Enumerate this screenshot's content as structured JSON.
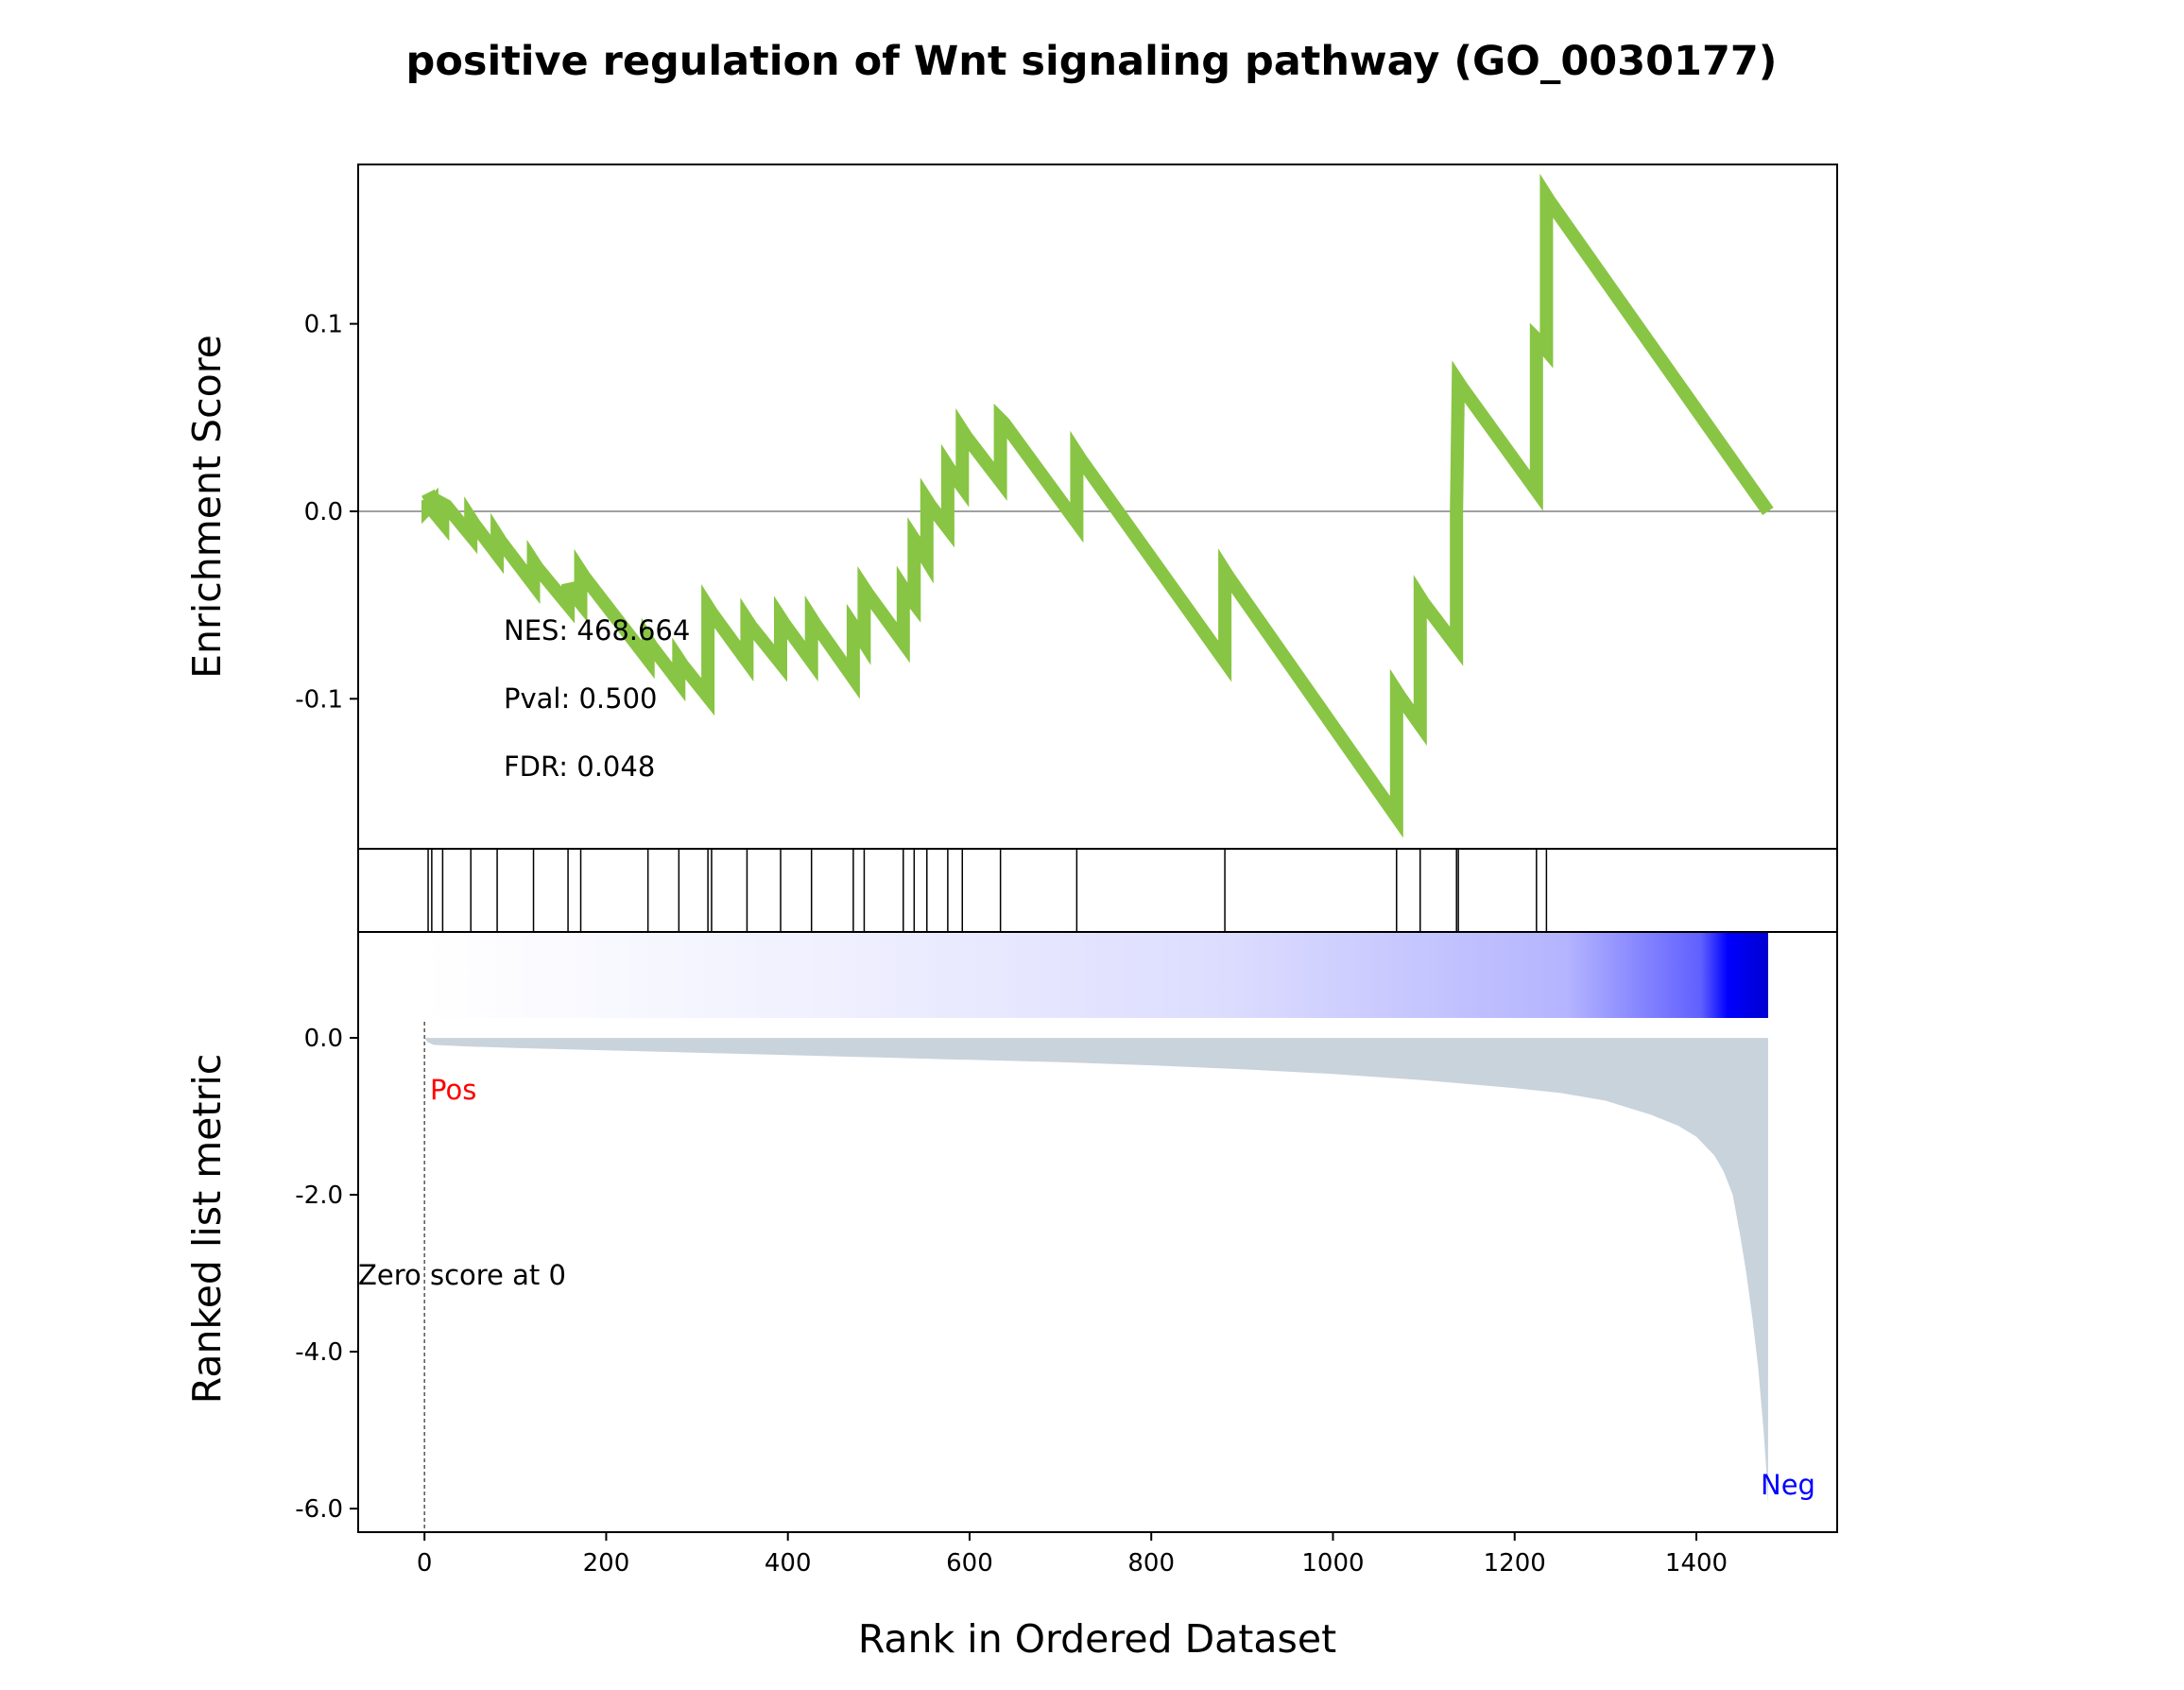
{
  "chart_data": {
    "type": "line",
    "title": "positive regulation of Wnt signaling pathway (GO_0030177)",
    "xlabel": "Rank in Ordered Dataset",
    "xlim": [
      -73,
      1555
    ],
    "x_ticks": [
      0,
      200,
      400,
      600,
      800,
      1000,
      1200,
      1400
    ],
    "enrichment_panel": {
      "ylabel": "Enrichment Score",
      "ylim": [
        -0.18,
        0.185
      ],
      "y_ticks": [
        0.1,
        0.0,
        -0.1
      ],
      "y_tick_labels": [
        "0.1",
        "0.0",
        "-0.1"
      ],
      "zero_line": true,
      "line_color": "#88c544",
      "running_es": [
        [
          0,
          0.005
        ],
        [
          4,
          0.006
        ],
        [
          4,
          0.002
        ],
        [
          8,
          0.004
        ],
        [
          8,
          0.001
        ],
        [
          20,
          -0.006
        ],
        [
          20,
          0.004
        ],
        [
          24,
          0.003
        ],
        [
          51,
          -0.013
        ],
        [
          51,
          -0.004
        ],
        [
          55,
          -0.007
        ],
        [
          80,
          -0.023
        ],
        [
          80,
          -0.013
        ],
        [
          84,
          -0.016
        ],
        [
          120,
          -0.039
        ],
        [
          120,
          -0.027
        ],
        [
          124,
          -0.03
        ],
        [
          158,
          -0.05
        ],
        [
          158,
          -0.039
        ],
        [
          162,
          -0.043
        ],
        [
          172,
          -0.049
        ],
        [
          172,
          -0.032
        ],
        [
          176,
          -0.035
        ],
        [
          246,
          -0.079
        ],
        [
          246,
          -0.069
        ],
        [
          250,
          -0.072
        ],
        [
          280,
          -0.091
        ],
        [
          280,
          -0.079
        ],
        [
          284,
          -0.082
        ],
        [
          312,
          -0.099
        ],
        [
          312,
          -0.051
        ],
        [
          316,
          -0.054
        ],
        [
          355,
          -0.08
        ],
        [
          355,
          -0.058
        ],
        [
          359,
          -0.061
        ],
        [
          392,
          -0.081
        ],
        [
          392,
          -0.057
        ],
        [
          396,
          -0.06
        ],
        [
          426,
          -0.08
        ],
        [
          426,
          -0.057
        ],
        [
          430,
          -0.06
        ],
        [
          472,
          -0.089
        ],
        [
          472,
          -0.061
        ],
        [
          476,
          -0.064
        ],
        [
          484,
          -0.07
        ],
        [
          484,
          -0.041
        ],
        [
          488,
          -0.044
        ],
        [
          527,
          -0.07
        ],
        [
          527,
          -0.041
        ],
        [
          531,
          -0.044
        ],
        [
          539,
          -0.049
        ],
        [
          539,
          -0.015
        ],
        [
          543,
          -0.018
        ],
        [
          553,
          -0.026
        ],
        [
          553,
          0.006
        ],
        [
          557,
          0.003
        ],
        [
          576,
          -0.009
        ],
        [
          576,
          0.024
        ],
        [
          580,
          0.021
        ],
        [
          592,
          0.013
        ],
        [
          592,
          0.043
        ],
        [
          596,
          0.04
        ],
        [
          634,
          0.016
        ],
        [
          634,
          0.049
        ],
        [
          638,
          0.047
        ],
        [
          718,
          -0.006
        ],
        [
          718,
          0.031
        ],
        [
          722,
          0.028
        ],
        [
          881,
          -0.08
        ],
        [
          881,
          -0.032
        ],
        [
          885,
          -0.035
        ],
        [
          1070,
          -0.163
        ],
        [
          1070,
          -0.096
        ],
        [
          1074,
          -0.099
        ],
        [
          1096,
          -0.114
        ],
        [
          1096,
          -0.046
        ],
        [
          1100,
          -0.049
        ],
        [
          1136,
          -0.072
        ],
        [
          1136,
          0.001
        ],
        [
          1138,
          0.069
        ],
        [
          1142,
          0.066
        ],
        [
          1224,
          0.011
        ],
        [
          1224,
          0.092
        ],
        [
          1228,
          0.09
        ],
        [
          1235,
          0.086
        ],
        [
          1235,
          0.168
        ],
        [
          1239,
          0.165
        ],
        [
          1479,
          0.0
        ]
      ],
      "annotations": [
        "NES: 468.664",
        "Pval: 0.500",
        "FDR: 0.048"
      ]
    },
    "hits_panel": {
      "hit_ranks": [
        4,
        8,
        20,
        51,
        80,
        120,
        158,
        172,
        246,
        280,
        312,
        316,
        355,
        392,
        426,
        472,
        484,
        527,
        539,
        553,
        576,
        592,
        634,
        718,
        881,
        1070,
        1096,
        1136,
        1138,
        1224,
        1235
      ],
      "heatmap_range": [
        0,
        1479
      ],
      "heatmap_colors": "white to blue (#0000ff) with increasing rank"
    },
    "ranked_metric_panel": {
      "ylabel": "Ranked list metric",
      "ylim": [
        -6.3,
        1.35
      ],
      "y_ticks": [
        0.0,
        -2.0,
        -4.0,
        -6.0
      ],
      "y_tick_labels": [
        "0.0",
        "-2.0",
        "-4.0",
        "-6.0"
      ],
      "fill_color": "#c9d3dc",
      "metric_curve": [
        [
          0,
          0.0
        ],
        [
          3,
          -0.05
        ],
        [
          10,
          -0.09
        ],
        [
          50,
          -0.11
        ],
        [
          100,
          -0.13
        ],
        [
          200,
          -0.16
        ],
        [
          300,
          -0.19
        ],
        [
          400,
          -0.22
        ],
        [
          500,
          -0.25
        ],
        [
          600,
          -0.28
        ],
        [
          700,
          -0.31
        ],
        [
          800,
          -0.35
        ],
        [
          900,
          -0.4
        ],
        [
          1000,
          -0.46
        ],
        [
          1100,
          -0.54
        ],
        [
          1200,
          -0.64
        ],
        [
          1250,
          -0.7
        ],
        [
          1300,
          -0.8
        ],
        [
          1350,
          -0.98
        ],
        [
          1380,
          -1.12
        ],
        [
          1400,
          -1.26
        ],
        [
          1420,
          -1.5
        ],
        [
          1430,
          -1.7
        ],
        [
          1440,
          -2.0
        ],
        [
          1448,
          -2.5
        ],
        [
          1455,
          -3.0
        ],
        [
          1462,
          -3.6
        ],
        [
          1468,
          -4.2
        ],
        [
          1474,
          -5.0
        ],
        [
          1477,
          -5.5
        ],
        [
          1479,
          -5.95
        ]
      ],
      "zero_cross_rank": 0,
      "pos_label": "Pos",
      "neg_label": "Neg",
      "pos_color": "#ff0000",
      "neg_color": "#0000ff",
      "zero_score_note": "Zero score at 0"
    }
  }
}
